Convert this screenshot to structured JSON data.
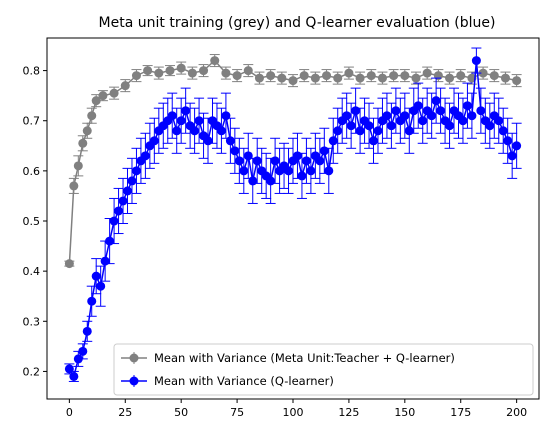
{
  "chart_data": {
    "type": "scatter",
    "title": "Meta unit training (grey) and Q-learner evaluation (blue)",
    "xlabel": "",
    "ylabel": "",
    "xlim": [
      -10,
      210
    ],
    "ylim": [
      0.145,
      0.865
    ],
    "xticks": [
      0,
      25,
      50,
      75,
      100,
      125,
      150,
      175,
      200
    ],
    "yticks": [
      0.2,
      0.3,
      0.4,
      0.5,
      0.6,
      0.7,
      0.8
    ],
    "grid": false,
    "legend_position": "lower-right",
    "series": [
      {
        "name": "Mean with Variance (Meta Unit:Teacher + Q-learner)",
        "color": "#808080",
        "x": [
          0,
          2,
          4,
          6,
          8,
          10,
          12,
          15,
          20,
          25,
          30,
          35,
          40,
          45,
          50,
          55,
          60,
          65,
          70,
          75,
          80,
          85,
          90,
          95,
          100,
          105,
          110,
          115,
          120,
          125,
          130,
          135,
          140,
          145,
          150,
          155,
          160,
          165,
          170,
          175,
          180,
          185,
          190,
          195,
          200
        ],
        "y": [
          0.415,
          0.57,
          0.61,
          0.655,
          0.68,
          0.71,
          0.74,
          0.75,
          0.755,
          0.77,
          0.79,
          0.8,
          0.795,
          0.8,
          0.805,
          0.795,
          0.8,
          0.82,
          0.795,
          0.79,
          0.8,
          0.785,
          0.79,
          0.785,
          0.78,
          0.79,
          0.785,
          0.79,
          0.785,
          0.795,
          0.785,
          0.79,
          0.785,
          0.79,
          0.79,
          0.785,
          0.795,
          0.79,
          0.785,
          0.79,
          0.785,
          0.795,
          0.79,
          0.785,
          0.78
        ],
        "err": [
          0.005,
          0.015,
          0.02,
          0.015,
          0.015,
          0.015,
          0.012,
          0.01,
          0.012,
          0.012,
          0.012,
          0.01,
          0.012,
          0.01,
          0.012,
          0.012,
          0.012,
          0.012,
          0.012,
          0.012,
          0.012,
          0.012,
          0.012,
          0.012,
          0.012,
          0.012,
          0.012,
          0.012,
          0.012,
          0.012,
          0.012,
          0.012,
          0.012,
          0.012,
          0.012,
          0.012,
          0.012,
          0.012,
          0.012,
          0.012,
          0.012,
          0.012,
          0.012,
          0.012,
          0.012
        ]
      },
      {
        "name": "Mean with Variance (Q-learner)",
        "color": "#0000ff",
        "x": [
          0,
          2,
          4,
          6,
          8,
          10,
          12,
          14,
          16,
          18,
          20,
          22,
          24,
          26,
          28,
          30,
          32,
          34,
          36,
          38,
          40,
          42,
          44,
          46,
          48,
          50,
          52,
          54,
          56,
          58,
          60,
          62,
          64,
          66,
          68,
          70,
          72,
          74,
          76,
          78,
          80,
          82,
          84,
          86,
          88,
          90,
          92,
          94,
          96,
          98,
          100,
          102,
          104,
          106,
          108,
          110,
          112,
          114,
          116,
          118,
          120,
          122,
          124,
          126,
          128,
          130,
          132,
          134,
          136,
          138,
          140,
          142,
          144,
          146,
          148,
          150,
          152,
          154,
          156,
          158,
          160,
          162,
          164,
          166,
          168,
          170,
          172,
          174,
          176,
          178,
          180,
          182,
          184,
          186,
          188,
          190,
          192,
          194,
          196,
          198,
          200
        ],
        "y": [
          0.205,
          0.19,
          0.225,
          0.24,
          0.28,
          0.34,
          0.39,
          0.37,
          0.42,
          0.46,
          0.5,
          0.52,
          0.54,
          0.56,
          0.58,
          0.6,
          0.62,
          0.63,
          0.65,
          0.66,
          0.68,
          0.69,
          0.7,
          0.71,
          0.68,
          0.7,
          0.72,
          0.69,
          0.68,
          0.7,
          0.67,
          0.66,
          0.7,
          0.69,
          0.68,
          0.71,
          0.66,
          0.64,
          0.62,
          0.6,
          0.63,
          0.58,
          0.62,
          0.6,
          0.59,
          0.58,
          0.62,
          0.6,
          0.61,
          0.6,
          0.62,
          0.63,
          0.59,
          0.62,
          0.6,
          0.63,
          0.62,
          0.64,
          0.6,
          0.66,
          0.68,
          0.7,
          0.71,
          0.69,
          0.72,
          0.68,
          0.7,
          0.69,
          0.66,
          0.68,
          0.7,
          0.71,
          0.69,
          0.72,
          0.7,
          0.71,
          0.68,
          0.72,
          0.73,
          0.7,
          0.72,
          0.71,
          0.74,
          0.72,
          0.7,
          0.69,
          0.72,
          0.71,
          0.7,
          0.73,
          0.71,
          0.82,
          0.72,
          0.7,
          0.69,
          0.71,
          0.7,
          0.68,
          0.66,
          0.63,
          0.65
        ],
        "err": [
          0.01,
          0.01,
          0.015,
          0.015,
          0.02,
          0.03,
          0.035,
          0.04,
          0.04,
          0.045,
          0.045,
          0.045,
          0.045,
          0.045,
          0.045,
          0.045,
          0.045,
          0.045,
          0.045,
          0.045,
          0.045,
          0.045,
          0.045,
          0.045,
          0.045,
          0.045,
          0.045,
          0.045,
          0.045,
          0.045,
          0.045,
          0.045,
          0.045,
          0.045,
          0.045,
          0.045,
          0.045,
          0.045,
          0.045,
          0.045,
          0.045,
          0.045,
          0.045,
          0.045,
          0.045,
          0.045,
          0.045,
          0.045,
          0.045,
          0.045,
          0.045,
          0.045,
          0.045,
          0.045,
          0.045,
          0.045,
          0.045,
          0.045,
          0.045,
          0.045,
          0.045,
          0.045,
          0.045,
          0.045,
          0.045,
          0.045,
          0.045,
          0.045,
          0.045,
          0.045,
          0.045,
          0.045,
          0.045,
          0.045,
          0.045,
          0.045,
          0.045,
          0.045,
          0.045,
          0.045,
          0.045,
          0.045,
          0.045,
          0.045,
          0.045,
          0.045,
          0.045,
          0.045,
          0.045,
          0.045,
          0.045,
          0.025,
          0.045,
          0.045,
          0.045,
          0.045,
          0.045,
          0.045,
          0.045,
          0.045,
          0.045
        ]
      }
    ]
  }
}
